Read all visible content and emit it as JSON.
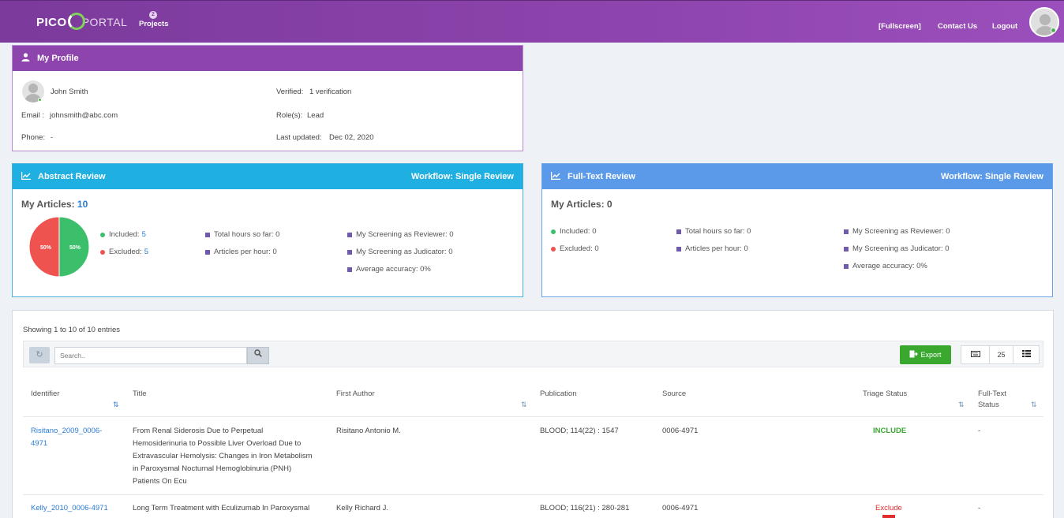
{
  "header": {
    "logo_left": "PICO",
    "logo_right": "PORTAL",
    "projects_badge": "2",
    "projects_label": "Projects",
    "fullscreen_label": "[Fullscreen]",
    "contact_label": "Contact Us",
    "logout_label": "Logout"
  },
  "profile": {
    "title": "My Profile",
    "name": "John Smith",
    "email_label": "Email :",
    "email": "johnsmith@abc.com",
    "phone_label": "Phone:",
    "phone": "-",
    "verified_label": "Verified:",
    "verified": "1 verification",
    "roles_label": "Role(s):",
    "roles": "Lead",
    "updated_label": "Last updated:",
    "updated": "Dec 02, 2020"
  },
  "abstract": {
    "title": "Abstract Review",
    "workflow": "Workflow: Single Review",
    "articles_label": "My Articles:",
    "articles_count": "10",
    "included_label": "Included:",
    "included": "5",
    "excluded_label": "Excluded:",
    "excluded": "5",
    "total_hours": "Total hours so far: 0",
    "per_hour": "Articles per hour: 0",
    "as_reviewer": "My Screening as Reviewer: 0",
    "as_judicator": "My Screening as Judicator: 0",
    "accuracy": "Average accuracy: 0%",
    "pie_excluded_label": "50%",
    "pie_included_label": "50%"
  },
  "chart_data": {
    "type": "pie",
    "categories": [
      "Included",
      "Excluded"
    ],
    "values": [
      5,
      5
    ],
    "colors": [
      "#3cbf6b",
      "#ef5350"
    ],
    "labels": [
      "50%",
      "50%"
    ]
  },
  "fulltext": {
    "title": "Full-Text Review",
    "workflow": "Workflow: Single Review",
    "articles_label": "My Articles: 0",
    "included": "Included: 0",
    "excluded": "Excluded: 0",
    "total_hours": "Total hours so far: 0",
    "per_hour": "Articles per hour: 0",
    "as_reviewer": "My Screening as Reviewer: 0",
    "as_judicator": "My Screening as Judicator: 0",
    "accuracy": "Average accuracy: 0%"
  },
  "table": {
    "showing": "Showing 1 to 10 of 10 entries",
    "search_placeholder": "Search..",
    "export_label": "Export",
    "page_size": "25",
    "columns": {
      "identifier": "Identifier",
      "title": "Title",
      "author": "First Author",
      "publication": "Publication",
      "source": "Source",
      "triage": "Triage Status",
      "fulltext_1": "Full-Text",
      "fulltext_2": "Status"
    },
    "rows": [
      {
        "identifier_1": "Risitano_2009_0006-",
        "identifier_2": "4971",
        "title_lines": [
          "From Renal Siderosis Due to Perpetual",
          "Hemosiderinuria to Possible Liver Overload Due to",
          "Extravascular Hemolysis: Changes in Iron Metabolism",
          "in Paroxysmal Nocturnal Hemoglobinuria (PNH)",
          "Patients On Ecu"
        ],
        "author": "Risitano Antonio M.",
        "publication": "BLOOD; 114(22) : 1547",
        "source": "0006-4971",
        "triage": "INCLUDE",
        "fulltext": "-"
      },
      {
        "identifier_1": "Kelly_2010_0006-4971",
        "title_lines": [
          "Long Term Treatment with Eculizumab In Paroxysmal"
        ],
        "author": "Kelly Richard J.",
        "publication": "BLOOD; 116(21) : 280-281",
        "source": "0006-4971",
        "triage": "Exclude",
        "fulltext": "-"
      }
    ]
  }
}
